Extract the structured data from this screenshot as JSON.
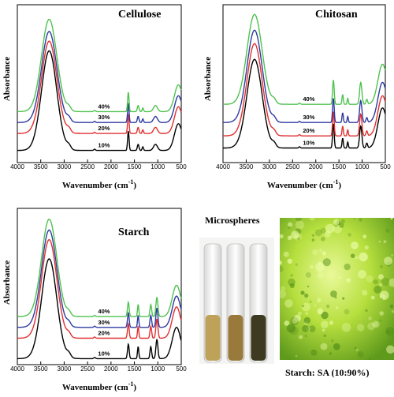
{
  "chart_data": [
    {
      "type": "line",
      "title": "Cellulose",
      "xlabel": "Wavenumber (cm",
      "xlabel_sup": "-1",
      "xlabel_end": ")",
      "ylabel": "Absorbance",
      "xlim": [
        4000,
        500
      ],
      "xticks": [
        4000,
        3500,
        3000,
        2500,
        2000,
        1500,
        1000,
        500
      ],
      "series": [
        {
          "name": "10%",
          "color": "#000000",
          "baseline": 0.1,
          "peak": 0.92
        },
        {
          "name": "20%",
          "color": "#e03030",
          "baseline": 0.24,
          "peak": 1.0
        },
        {
          "name": "30%",
          "color": "#2e3aa0",
          "baseline": 0.33,
          "peak": 1.08
        },
        {
          "name": "40%",
          "color": "#4fc24f",
          "baseline": 0.42,
          "peak": 1.18
        }
      ]
    },
    {
      "type": "line",
      "title": "Chitosan",
      "xlabel": "Wavenumber (cm",
      "xlabel_sup": "-1",
      "xlabel_end": ")",
      "ylabel": "Absorbance",
      "xlim": [
        4000,
        500
      ],
      "xticks": [
        4000,
        3500,
        3000,
        2500,
        2000,
        1500,
        1000,
        500
      ],
      "series": [
        {
          "name": "10%",
          "color": "#000000",
          "baseline": 0.12,
          "peak": 0.85
        },
        {
          "name": "20%",
          "color": "#e03030",
          "baseline": 0.22,
          "peak": 0.98
        },
        {
          "name": "30%",
          "color": "#2e3aa0",
          "baseline": 0.33,
          "peak": 1.09
        },
        {
          "name": "40%",
          "color": "#4fc24f",
          "baseline": 0.48,
          "peak": 1.22
        }
      ]
    },
    {
      "type": "line",
      "title": "Starch",
      "xlabel": "Wavenumber (cm",
      "xlabel_sup": "-1",
      "xlabel_end": ")",
      "ylabel": "Absorbance",
      "xlim": [
        4000,
        500
      ],
      "xticks": [
        4000,
        3500,
        3000,
        2500,
        2000,
        1500,
        1000,
        500
      ],
      "series": [
        {
          "name": "10%",
          "color": "#000000",
          "baseline": 0.05,
          "peak": 0.88
        },
        {
          "name": "20%",
          "color": "#e03030",
          "baseline": 0.22,
          "peak": 1.04
        },
        {
          "name": "30%",
          "color": "#2e3aa0",
          "baseline": 0.31,
          "peak": 1.12
        },
        {
          "name": "40%",
          "color": "#4fc24f",
          "baseline": 0.4,
          "peak": 1.21
        }
      ]
    }
  ],
  "microspheres": {
    "title": "Microspheres",
    "caption": "Starch: SA (10:90%)",
    "vial_colors": [
      "#bfa25a",
      "#9a7a3a",
      "#3e3a22"
    ],
    "micro_color": "#a6d63a"
  }
}
